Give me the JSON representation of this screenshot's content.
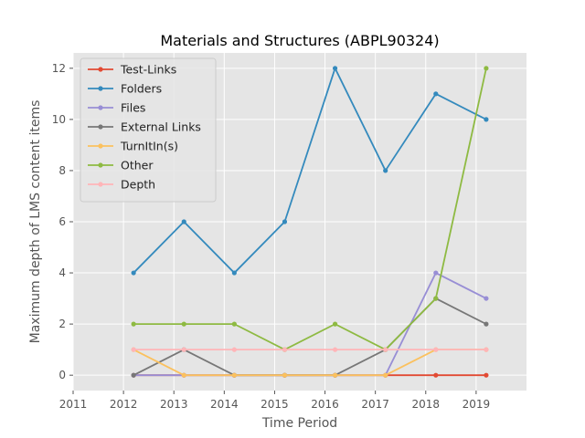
{
  "chart_data": {
    "type": "line",
    "title": "Materials and Structures (ABPL90324)",
    "xlabel": "Time Period",
    "ylabel": "Maximum depth of LMS content items",
    "xlim": [
      2011,
      2020
    ],
    "ylim": [
      -0.6,
      12.6
    ],
    "xticks": [
      2011,
      2012,
      2013,
      2014,
      2015,
      2016,
      2017,
      2018,
      2019
    ],
    "yticks": [
      0,
      2,
      4,
      6,
      8,
      10,
      12
    ],
    "grid": true,
    "legend_position": "top-left",
    "x": [
      2012.2,
      2013.2,
      2014.2,
      2015.2,
      2016.2,
      2017.2,
      2018.2,
      2019.2
    ],
    "series": [
      {
        "name": "Test-Links",
        "color": "#E24A33",
        "values": [
          0,
          0,
          0,
          0,
          0,
          0,
          0,
          0
        ]
      },
      {
        "name": "Folders",
        "color": "#348ABD",
        "values": [
          4,
          6,
          4,
          6,
          12,
          8,
          11,
          10
        ]
      },
      {
        "name": "Files",
        "color": "#988ED5",
        "values": [
          0,
          0,
          0,
          0,
          0,
          0,
          4,
          3
        ]
      },
      {
        "name": "External Links",
        "color": "#777777",
        "values": [
          0,
          1,
          0,
          0,
          0,
          1,
          3,
          2
        ]
      },
      {
        "name": "TurnItIn(s)",
        "color": "#FBC15E",
        "values": [
          1,
          0,
          0,
          0,
          0,
          0,
          1,
          1
        ]
      },
      {
        "name": "Other",
        "color": "#8EBA42",
        "values": [
          2,
          2,
          2,
          1,
          2,
          1,
          3,
          12
        ]
      },
      {
        "name": "Depth",
        "color": "#FFB5B8",
        "values": [
          1,
          1,
          1,
          1,
          1,
          1,
          1,
          1
        ]
      }
    ]
  }
}
